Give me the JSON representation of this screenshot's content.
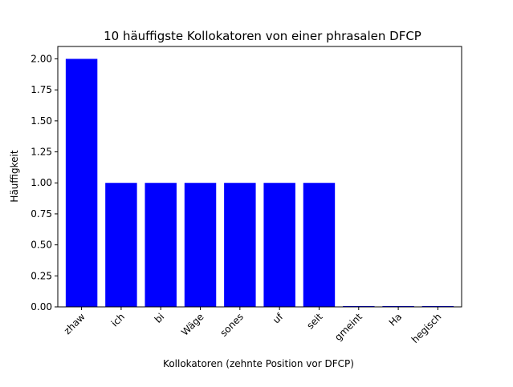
{
  "chart_data": {
    "type": "bar",
    "title": "10 häuffigste Kollokatoren von einer phrasalen DFCP",
    "xlabel": "Kollokatoren (zehnte Position vor DFCP)",
    "ylabel": "Häuffigkeit",
    "categories": [
      "zhaw",
      "ich",
      "bi",
      "Wäge",
      "sones",
      "uf",
      "seit",
      "gmeint",
      "Ha",
      "hegisch"
    ],
    "values": [
      2,
      1,
      1,
      1,
      1,
      1,
      1,
      0,
      0,
      0
    ],
    "ylim": [
      0,
      2.1
    ],
    "yticks": [
      "0.00",
      "0.25",
      "0.50",
      "0.75",
      "1.00",
      "1.25",
      "1.50",
      "1.75",
      "2.00"
    ],
    "bar_color": "#0000ff",
    "grid": false,
    "legend": "none"
  }
}
